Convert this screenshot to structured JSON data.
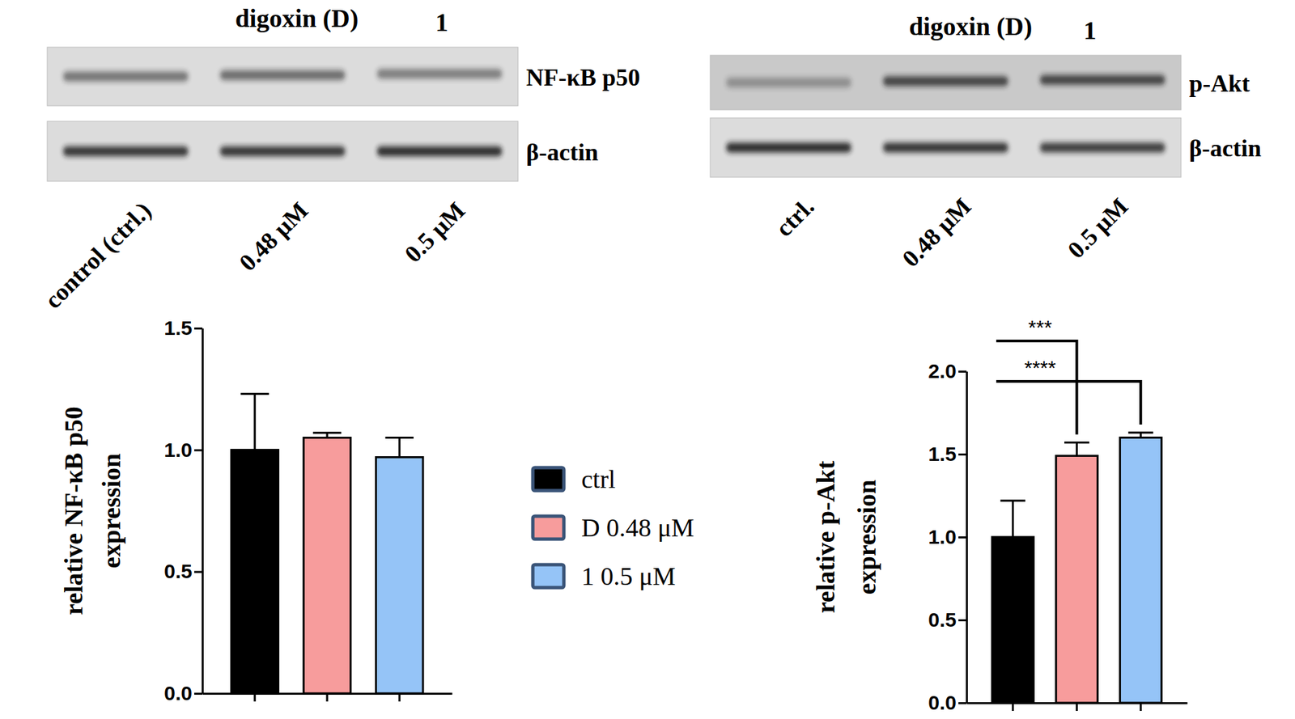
{
  "blots": [
    {
      "treatment_label": "digoxin (D)",
      "compound_label": "1",
      "lanes": [
        "control (ctrl.)",
        "0.48 μM",
        "0.5 μM"
      ],
      "bands": [
        "NF-κB p50",
        "β-actin"
      ]
    },
    {
      "treatment_label": "digoxin (D)",
      "compound_label": "1",
      "lanes": [
        "ctrl.",
        "0.48 μM",
        "0.5 μM"
      ],
      "bands": [
        "p-Akt",
        "β-actin"
      ]
    }
  ],
  "chart_data": [
    {
      "type": "bar",
      "ylabel": [
        "relative NF-κB p50",
        "expression"
      ],
      "categories": [
        null,
        null,
        null
      ],
      "ylim": [
        0,
        1.5
      ],
      "yticks": [
        {
          "value": 0,
          "label": "0.0"
        },
        {
          "value": 0.5,
          "label": "0.5"
        },
        {
          "value": 1,
          "label": "1.0"
        },
        {
          "value": 1.5,
          "label": "1.5"
        }
      ],
      "stacked": true,
      "legend": "right",
      "series": [
        {
          "name": "ctrl",
          "color": "#000000",
          "values": [
            1.0,
            null,
            null
          ],
          "errors": [
            0.23,
            null,
            null
          ]
        },
        {
          "name": "D 0.48 μM",
          "color": "#f79c9c",
          "values": [
            null,
            1.05,
            null
          ],
          "errors": [
            null,
            0.02,
            null
          ]
        },
        {
          "name": "1 0.5 μM",
          "color": "#95c4f7",
          "values": [
            null,
            null,
            0.97
          ],
          "errors": [
            null,
            null,
            0.08
          ]
        }
      ]
    },
    {
      "type": "bar",
      "ylabel": [
        "relative p-Akt",
        "expression"
      ],
      "categories": [
        null,
        null,
        null
      ],
      "ylim": [
        0,
        2
      ],
      "yticks": [
        {
          "value": 0,
          "label": "0.0"
        },
        {
          "value": 0.5,
          "label": "0.5"
        },
        {
          "value": 1,
          "label": "1.0"
        },
        {
          "value": 1.5,
          "label": "1.5"
        },
        {
          "value": 2,
          "label": "2.0"
        }
      ],
      "stacked": true,
      "series": [
        {
          "color": "#000000",
          "values": [
            1.0,
            null,
            null
          ],
          "errors": [
            0.22,
            null,
            null
          ]
        },
        {
          "color": "#f79c9c",
          "values": [
            null,
            1.49,
            null
          ],
          "errors": [
            null,
            0.08,
            null
          ]
        },
        {
          "color": "#95c4f7",
          "values": [
            null,
            null,
            1.6
          ],
          "errors": [
            null,
            null,
            0.03
          ]
        }
      ],
      "annotations": [
        {
          "from": 0,
          "to": 1,
          "label": "***"
        },
        {
          "from": 0,
          "to": 2,
          "label": "****"
        }
      ]
    }
  ]
}
